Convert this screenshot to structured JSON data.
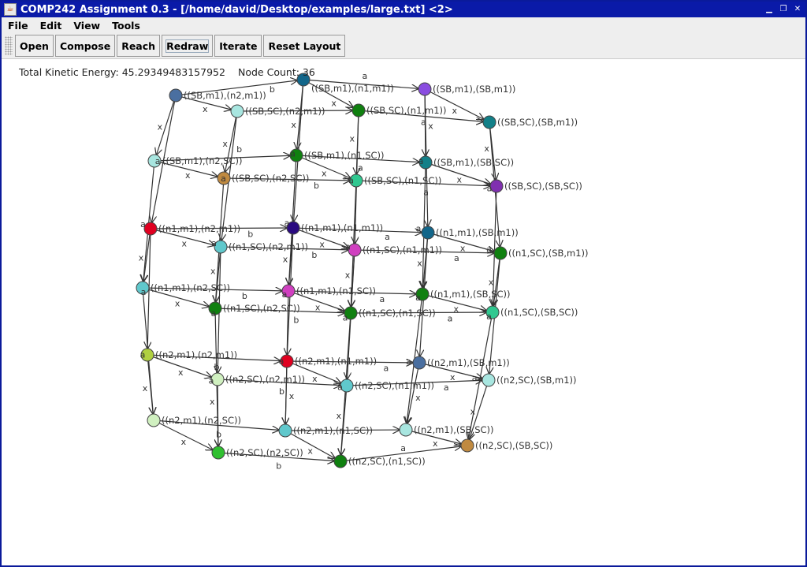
{
  "window": {
    "title": "COMP242 Assignment 0.3 - [/home/david/Desktop/examples/large.txt] <2>"
  },
  "menu": [
    "File",
    "Edit",
    "View",
    "Tools"
  ],
  "toolbar": [
    "Open",
    "Compose",
    "Reach",
    "Redraw",
    "Iterate",
    "Reset Layout"
  ],
  "stats": {
    "energy": "Total Kinetic Energy: 45.29349483157952",
    "count": "Node Count: 36"
  },
  "graph": {
    "nodes": [
      {
        "label": "((SB,m1),(n2,m1))",
        "color": "#4a6fa0"
      },
      {
        "label": "((SB,SC),(n2,m1))",
        "color": "#a8e6e0"
      },
      {
        "label": "((SB,m1),(n1,m1))",
        "color": "#12668a"
      },
      {
        "label": "((SB,SC),(n1,m1))",
        "color": "#108010"
      },
      {
        "label": "((SB,m1),(SB,m1))",
        "color": "#8a4de0"
      },
      {
        "label": "((SB,SC),(SB,m1))",
        "color": "#138088"
      },
      {
        "label": "((SB,m1),(n2,SC))",
        "color": "#a8e6e0"
      },
      {
        "label": "((SB,SC),(n2,SC))",
        "color": "#c08a40"
      },
      {
        "label": "((SB,m1),(n1,SC))",
        "color": "#108010"
      },
      {
        "label": "((SB,SC),(n1,SC))",
        "color": "#30c890"
      },
      {
        "label": "((SB,m1),(SB,SC))",
        "color": "#138088"
      },
      {
        "label": "((SB,SC),(SB,SC))",
        "color": "#8030b0"
      },
      {
        "label": "((n1,m1),(n2,m1))",
        "color": "#e00020"
      },
      {
        "label": "((n1,SC),(n2,m1))",
        "color": "#60c8cc"
      },
      {
        "label": "((n1,m1),(n1,m1))",
        "color": "#2a0a80"
      },
      {
        "label": "((n1,SC),(n1,m1))",
        "color": "#d040c0"
      },
      {
        "label": "((n1,m1),(SB,m1))",
        "color": "#12668a"
      },
      {
        "label": "((n1,SC),(SB,m1))",
        "color": "#108010"
      },
      {
        "label": "((n1,m1),(n2,SC))",
        "color": "#60c8cc"
      },
      {
        "label": "((n1,SC),(n2,SC))",
        "color": "#108010"
      },
      {
        "label": "((n1,m1),(n1,SC))",
        "color": "#d040c0"
      },
      {
        "label": "((n1,SC),(n1,SC))",
        "color": "#108010"
      },
      {
        "label": "((n1,m1),(SB,SC))",
        "color": "#108010"
      },
      {
        "label": "((n1,SC),(SB,SC))",
        "color": "#30c890"
      },
      {
        "label": "((n2,m1),(n2,m1))",
        "color": "#b0d040"
      },
      {
        "label": "((n2,SC),(n2,m1))",
        "color": "#d0f0c0"
      },
      {
        "label": "((n2,m1),(n1,m1))",
        "color": "#e00020"
      },
      {
        "label": "((n2,SC),(n1,m1))",
        "color": "#60c8cc"
      },
      {
        "label": "((n2,m1),(SB,m1))",
        "color": "#4a6fa0"
      },
      {
        "label": "((n2,SC),(SB,m1))",
        "color": "#a8e6e0"
      },
      {
        "label": "((n2,m1),(n2,SC))",
        "color": "#d0f0c0"
      },
      {
        "label": "((n2,SC),(n2,SC))",
        "color": "#30c030"
      },
      {
        "label": "((n2,m1),(n1,SC))",
        "color": "#60c8cc"
      },
      {
        "label": "((n2,SC),(n1,SC))",
        "color": "#108010"
      },
      {
        "label": "((n2,m1),(SB,SC))",
        "color": "#a8e6e0"
      },
      {
        "label": "((n2,SC),(SB,SC))",
        "color": "#c08a40"
      }
    ],
    "edge_labels": {
      "row_pair": "x",
      "row_step_even": "b",
      "row_step_odd": "a",
      "within_layer": "x",
      "between_layers": "a"
    }
  }
}
